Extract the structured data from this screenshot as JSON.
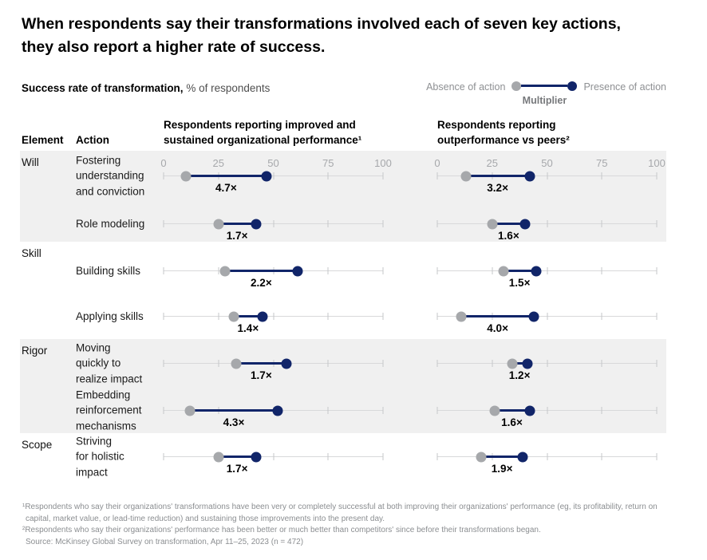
{
  "header": {
    "title": "When respondents say their transformations involved each of seven key actions, they also report a higher rate of success.",
    "subtitle_bold": "Success rate of transformation,",
    "subtitle_rest": "% of respondents"
  },
  "legend": {
    "absence_label": "Absence of action",
    "presence_label": "Presence of action",
    "multiplier_label": "Multiplier"
  },
  "table": {
    "element_header": "Element",
    "action_header": "Action"
  },
  "chart_data": {
    "type": "dumbbell",
    "title": "Success rate of transformation, % of respondents",
    "axis": {
      "min": 0,
      "max": 100,
      "ticks": [
        0,
        25,
        50,
        75,
        100
      ],
      "grid": false
    },
    "legend_entries": [
      "Absence of action",
      "Presence of action"
    ],
    "legend_position": "top-right",
    "col_headers": [
      "Respondents reporting improved and sustained organizational performance¹",
      "Respondents reporting outperformance vs peers²"
    ],
    "groups": [
      {
        "element": "Will",
        "shaded": true,
        "rows": [
          {
            "action": "Fostering\nunderstanding\nand conviction",
            "col1": {
              "absence": 10,
              "presence": 47,
              "multiplier": "4.7×"
            },
            "col2": {
              "absence": 13,
              "presence": 42,
              "multiplier": "3.2×"
            }
          },
          {
            "action": "Role modeling",
            "col1": {
              "absence": 25,
              "presence": 42,
              "multiplier": "1.7×"
            },
            "col2": {
              "absence": 25,
              "presence": 40,
              "multiplier": "1.6×"
            }
          }
        ]
      },
      {
        "element": "Skill",
        "shaded": false,
        "rows": [
          {
            "action": "Building skills",
            "col1": {
              "absence": 28,
              "presence": 61,
              "multiplier": "2.2×"
            },
            "col2": {
              "absence": 30,
              "presence": 45,
              "multiplier": "1.5×"
            }
          },
          {
            "action": "Applying skills",
            "col1": {
              "absence": 32,
              "presence": 45,
              "multiplier": "1.4×"
            },
            "col2": {
              "absence": 11,
              "presence": 44,
              "multiplier": "4.0×"
            }
          }
        ]
      },
      {
        "element": "Rigor",
        "shaded": true,
        "rows": [
          {
            "action": "Moving\nquickly to\nrealize impact",
            "col1": {
              "absence": 33,
              "presence": 56,
              "multiplier": "1.7×"
            },
            "col2": {
              "absence": 34,
              "presence": 41,
              "multiplier": "1.2×"
            }
          },
          {
            "action": "Embedding\nreinforcement\nmechanisms",
            "col1": {
              "absence": 12,
              "presence": 52,
              "multiplier": "4.3×"
            },
            "col2": {
              "absence": 26,
              "presence": 42,
              "multiplier": "1.6×"
            }
          }
        ]
      },
      {
        "element": "Scope",
        "shaded": false,
        "rows": [
          {
            "action": "Striving\nfor holistic\nimpact",
            "col1": {
              "absence": 25,
              "presence": 42,
              "multiplier": "1.7×"
            },
            "col2": {
              "absence": 20,
              "presence": 39,
              "multiplier": "1.9×"
            }
          }
        ]
      }
    ]
  },
  "colors": {
    "navy": "#112569",
    "gray_dot": "#a6a8ab",
    "band": "#f0f0f0",
    "axis_line": "#d8d9da",
    "tick_mark": "#c6c7ca",
    "tick_label": "#a6a8ab",
    "legend_text": "#8e9093",
    "multiplier_legend": "#77797c",
    "footnote": "#8b8e91"
  },
  "footnotes": [
    "¹Respondents who say their organizations' transformations have been very or completely successful at both improving their organizations' performance (eg, its profitability, return on capital, market value, or lead-time reduction) and sustaining those improvements into the present day.",
    "²Respondents who say their organizations' performance has been better or much better than competitors' since before their transformations began.",
    "Source: McKinsey Global Survey on transformation, Apr 11–25, 2023 (n = 472)"
  ]
}
